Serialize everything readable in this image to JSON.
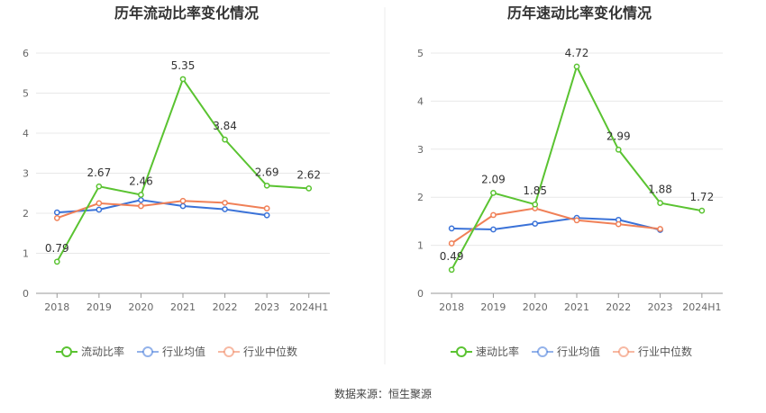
{
  "source": "数据来源：恒生聚源",
  "chart_data": [
    {
      "type": "line",
      "title": "历年流动比率变化情况",
      "categories": [
        "2018",
        "2019",
        "2020",
        "2021",
        "2022",
        "2023",
        "2024H1"
      ],
      "ylim": [
        0,
        6
      ],
      "yticks": [
        "0",
        "1",
        "2",
        "3",
        "4",
        "5",
        "6"
      ],
      "grid": true,
      "legend_position": "bottom",
      "series": [
        {
          "name": "流动比率",
          "color": "#5ac331",
          "labeled": true,
          "values": [
            0.79,
            2.67,
            2.46,
            5.35,
            3.84,
            2.69,
            2.62
          ],
          "labels": [
            "0.79",
            "2.67",
            "2.46",
            "5.35",
            "3.84",
            "2.69",
            "2.62"
          ]
        },
        {
          "name": "行业均值",
          "color": "#3a72d8",
          "labeled": false,
          "values": [
            2.02,
            2.09,
            2.33,
            2.18,
            2.1,
            1.95,
            null
          ]
        },
        {
          "name": "行业中位数",
          "color": "#f08057",
          "labeled": false,
          "values": [
            1.88,
            2.25,
            2.18,
            2.31,
            2.26,
            2.12,
            null
          ]
        }
      ]
    },
    {
      "type": "line",
      "title": "历年速动比率变化情况",
      "categories": [
        "2018",
        "2019",
        "2020",
        "2021",
        "2022",
        "2023",
        "2024H1"
      ],
      "ylim": [
        0,
        5
      ],
      "yticks": [
        "0",
        "1",
        "2",
        "3",
        "4",
        "5"
      ],
      "grid": true,
      "legend_position": "bottom",
      "series": [
        {
          "name": "速动比率",
          "color": "#5ac331",
          "labeled": true,
          "values": [
            0.49,
            2.09,
            1.85,
            4.72,
            2.99,
            1.88,
            1.72
          ],
          "labels": [
            "0.49",
            "2.09",
            "1.85",
            "4.72",
            "2.99",
            "1.88",
            "1.72"
          ]
        },
        {
          "name": "行业均值",
          "color": "#3a72d8",
          "labeled": false,
          "values": [
            1.35,
            1.33,
            1.45,
            1.57,
            1.53,
            1.32,
            null
          ]
        },
        {
          "name": "行业中位数",
          "color": "#f08057",
          "labeled": false,
          "values": [
            1.04,
            1.63,
            1.77,
            1.52,
            1.44,
            1.34,
            null
          ]
        }
      ]
    }
  ]
}
